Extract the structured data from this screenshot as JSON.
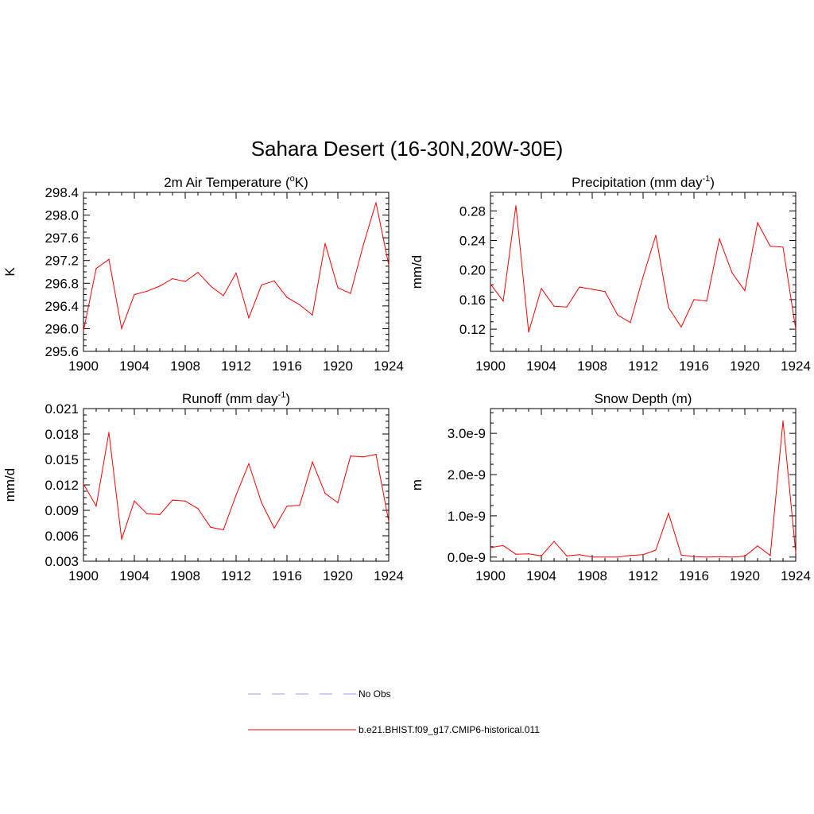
{
  "figure": {
    "title": "Sahara Desert (16-30N,20W-30E)",
    "legend": {
      "obs_label": "No Obs",
      "obs_color": "#9999ff",
      "model_label": "b.e21.BHIST.f09_g17.CMIP6-historical.011",
      "model_color": "#ff0000"
    }
  },
  "chart_data": [
    {
      "type": "line",
      "title": "2m Air Temperature (",
      "title_sup": "o",
      "title_after": "K)",
      "ylabel": "K",
      "xlim": [
        1900,
        1924
      ],
      "ylim": [
        295.6,
        298.4
      ],
      "x_ticks": [
        "1900",
        "1904",
        "1908",
        "1912",
        "1916",
        "1920",
        "1924"
      ],
      "y_ticks": [
        "295.6",
        "296.0",
        "296.4",
        "296.8",
        "297.2",
        "297.6",
        "298.0",
        "298.4"
      ],
      "color": "#ff0000",
      "x": [
        1900,
        1901,
        1902,
        1903,
        1904,
        1905,
        1906,
        1907,
        1908,
        1909,
        1910,
        1911,
        1912,
        1913,
        1914,
        1915,
        1916,
        1917,
        1918,
        1919,
        1920,
        1921,
        1922,
        1923,
        1924
      ],
      "values": [
        295.96,
        297.06,
        297.22,
        296.0,
        296.6,
        296.66,
        296.75,
        296.88,
        296.83,
        296.99,
        296.75,
        296.58,
        296.98,
        296.19,
        296.77,
        296.84,
        296.55,
        296.42,
        296.24,
        297.5,
        296.72,
        296.62,
        297.47,
        298.22,
        297.12
      ]
    },
    {
      "type": "line",
      "title": "Precipitation (mm day",
      "title_sup": "-1",
      "title_after": ")",
      "ylabel": "mm/d",
      "xlim": [
        1900,
        1924
      ],
      "ylim": [
        0.09,
        0.305
      ],
      "x_ticks": [
        "1900",
        "1904",
        "1908",
        "1912",
        "1916",
        "1920",
        "1924"
      ],
      "y_ticks": [
        "0.12",
        "0.16",
        "0.20",
        "0.24",
        "0.28"
      ],
      "color": "#ff0000",
      "x": [
        1900,
        1901,
        1902,
        1903,
        1904,
        1905,
        1906,
        1907,
        1908,
        1909,
        1910,
        1911,
        1912,
        1913,
        1914,
        1915,
        1916,
        1917,
        1918,
        1919,
        1920,
        1921,
        1922,
        1923,
        1924
      ],
      "values": [
        0.181,
        0.158,
        0.287,
        0.116,
        0.175,
        0.151,
        0.15,
        0.177,
        0.174,
        0.171,
        0.139,
        0.129,
        0.191,
        0.247,
        0.149,
        0.123,
        0.16,
        0.158,
        0.242,
        0.196,
        0.172,
        0.264,
        0.232,
        0.231,
        0.12
      ]
    },
    {
      "type": "line",
      "title": "Runoff (mm day",
      "title_sup": "-1",
      "title_after": ")",
      "ylabel": "mm/d",
      "xlim": [
        1900,
        1924
      ],
      "ylim": [
        0.003,
        0.021
      ],
      "x_ticks": [
        "1900",
        "1904",
        "1908",
        "1912",
        "1916",
        "1920",
        "1924"
      ],
      "y_ticks": [
        "0.003",
        "0.006",
        "0.009",
        "0.012",
        "0.015",
        "0.018",
        "0.021"
      ],
      "color": "#ff0000",
      "x": [
        1900,
        1901,
        1902,
        1903,
        1904,
        1905,
        1906,
        1907,
        1908,
        1909,
        1910,
        1911,
        1912,
        1913,
        1914,
        1915,
        1916,
        1917,
        1918,
        1919,
        1920,
        1921,
        1922,
        1923,
        1924
      ],
      "values": [
        0.0121,
        0.0095,
        0.0182,
        0.0056,
        0.0101,
        0.0086,
        0.0085,
        0.0102,
        0.0101,
        0.0092,
        0.007,
        0.0067,
        0.0108,
        0.0145,
        0.0099,
        0.0069,
        0.0095,
        0.0096,
        0.0147,
        0.011,
        0.0099,
        0.0154,
        0.0153,
        0.0156,
        0.0077
      ]
    },
    {
      "type": "line",
      "title": "Snow Depth (m)",
      "title_sup": "",
      "title_after": "",
      "ylabel": "m",
      "xlim": [
        1900,
        1924
      ],
      "ylim": [
        -1e-10,
        3.6e-09
      ],
      "x_ticks": [
        "1900",
        "1904",
        "1908",
        "1912",
        "1916",
        "1920",
        "1924"
      ],
      "y_ticks": [
        "0.0e-9",
        "1.0e-9",
        "2.0e-9",
        "3.0e-9"
      ],
      "color": "#ff0000",
      "x": [
        1900,
        1901,
        1902,
        1903,
        1904,
        1905,
        1906,
        1907,
        1908,
        1909,
        1910,
        1911,
        1912,
        1913,
        1914,
        1915,
        1916,
        1917,
        1918,
        1919,
        1920,
        1921,
        1922,
        1923,
        1924
      ],
      "values": [
        2.3e-10,
        2.8e-10,
        7e-11,
        8e-11,
        3e-11,
        3.8e-10,
        3e-11,
        6e-11,
        0.0,
        0.0,
        0.0,
        4e-11,
        6e-11,
        1.7e-10,
        1.06e-09,
        5e-11,
        1e-11,
        0.0,
        1e-11,
        0.0,
        2e-11,
        2.7e-10,
        4e-11,
        3.3e-09,
        1e-10
      ]
    }
  ]
}
